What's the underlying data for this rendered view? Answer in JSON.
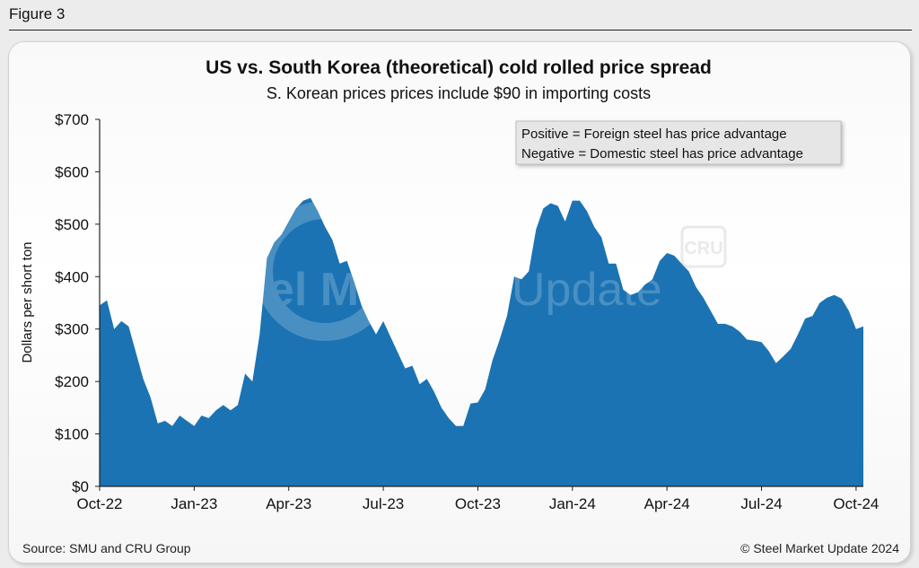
{
  "figure_label": "Figure 3",
  "source": "Source: SMU and CRU Group",
  "copyright": "© Steel Market Update 2024",
  "watermark": {
    "text_left": "Steel Market",
    "text_right": "Update",
    "badge": "CRU"
  },
  "colors": {
    "area_fill": "#1b73b3",
    "text": "#111111"
  },
  "chart_data": {
    "type": "area",
    "title": "US vs. South Korea (theoretical) cold rolled price spread",
    "subtitle": "S. Korean prices prices include $90 in importing costs",
    "ylabel": "Dollars per short ton",
    "xlabel": "",
    "ylim": [
      0,
      700
    ],
    "yticks": [
      0,
      100,
      200,
      300,
      400,
      500,
      600,
      700
    ],
    "ytick_labels": [
      "$0",
      "$100",
      "$200",
      "$300",
      "$400",
      "$500",
      "$600",
      "$700"
    ],
    "xticks": [
      "Oct-22",
      "Jan-23",
      "Apr-23",
      "Jul-23",
      "Oct-23",
      "Jan-24",
      "Apr-24",
      "Jul-24",
      "Oct-24"
    ],
    "grid": false,
    "legend": [
      "Positive = Foreign steel has price advantage",
      "Negative = Domestic steel has price advantage"
    ],
    "legend_position": "top-right",
    "series": [
      {
        "x_start": "Oct-22",
        "interval": "weekly",
        "values": [
          345,
          355,
          300,
          315,
          305,
          255,
          205,
          170,
          120,
          125,
          115,
          135,
          125,
          115,
          135,
          130,
          145,
          155,
          145,
          155,
          215,
          200,
          290,
          435,
          465,
          480,
          505,
          530,
          545,
          550,
          525,
          495,
          470,
          425,
          430,
          390,
          345,
          315,
          290,
          315,
          285,
          255,
          225,
          230,
          195,
          205,
          180,
          150,
          130,
          115,
          115,
          158,
          160,
          185,
          240,
          280,
          325,
          400,
          395,
          410,
          490,
          530,
          540,
          535,
          505,
          545,
          545,
          525,
          495,
          475,
          425,
          425,
          375,
          365,
          370,
          385,
          395,
          430,
          445,
          440,
          425,
          410,
          380,
          360,
          335,
          310,
          310,
          305,
          295,
          280,
          278,
          275,
          258,
          235,
          248,
          262,
          290,
          320,
          325,
          350,
          360,
          365,
          358,
          335,
          300,
          305
        ]
      }
    ]
  }
}
